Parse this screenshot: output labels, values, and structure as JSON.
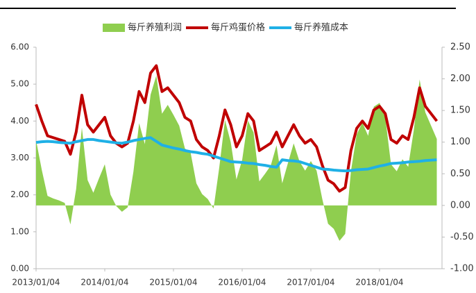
{
  "chart_data": {
    "type": "line",
    "categories": [
      "2013/01/04",
      null,
      null,
      null,
      null,
      null,
      null,
      null,
      null,
      null,
      null,
      null,
      "2014/01/04",
      null,
      null,
      null,
      null,
      null,
      null,
      null,
      null,
      null,
      null,
      null,
      "2015/01/04",
      null,
      null,
      null,
      null,
      null,
      null,
      null,
      null,
      null,
      null,
      null,
      "2016/01/04",
      null,
      null,
      null,
      null,
      null,
      null,
      null,
      null,
      null,
      null,
      null,
      "2017/01/04",
      null,
      null,
      null,
      null,
      null,
      null,
      null,
      null,
      null,
      null,
      null,
      "2018/01/04",
      null,
      null,
      null,
      null,
      null,
      null,
      null,
      null,
      null,
      null
    ],
    "series": [
      {
        "name": "每斤养殖利润",
        "color": "#8fce4f",
        "style": "area",
        "axis": "y2",
        "values": [
          1.03,
          0.56,
          0.15,
          0.11,
          0.08,
          0.04,
          -0.3,
          0.26,
          1.23,
          0.4,
          0.2,
          0.43,
          0.65,
          0.17,
          -0.01,
          -0.1,
          -0.03,
          0.53,
          1.3,
          0.97,
          1.75,
          2.05,
          1.45,
          1.59,
          1.43,
          1.26,
          0.9,
          0.83,
          0.35,
          0.18,
          0.1,
          -0.05,
          0.6,
          1.35,
          1.0,
          0.41,
          0.72,
          1.34,
          1.15,
          0.38,
          0.5,
          0.63,
          0.95,
          0.35,
          0.67,
          0.98,
          0.7,
          0.55,
          0.7,
          0.55,
          0.1,
          -0.29,
          -0.37,
          -0.56,
          -0.45,
          0.54,
          1.12,
          1.31,
          1.1,
          1.56,
          1.62,
          1.39,
          0.65,
          0.54,
          0.73,
          0.61,
          1.2,
          1.99,
          1.47,
          1.26,
          1.05
        ]
      },
      {
        "name": "每斤鸡蛋价格",
        "color": "#c00000",
        "style": "line",
        "values": [
          4.45,
          4.0,
          3.6,
          3.55,
          3.5,
          3.45,
          3.1,
          3.7,
          4.7,
          3.9,
          3.7,
          3.9,
          4.1,
          3.6,
          3.4,
          3.3,
          3.4,
          4.0,
          4.8,
          4.5,
          5.3,
          5.5,
          4.8,
          4.9,
          4.7,
          4.5,
          4.1,
          4.0,
          3.5,
          3.3,
          3.2,
          3.0,
          3.6,
          4.3,
          3.9,
          3.3,
          3.6,
          4.2,
          4.0,
          3.2,
          3.3,
          3.4,
          3.7,
          3.3,
          3.6,
          3.9,
          3.6,
          3.4,
          3.5,
          3.3,
          2.8,
          2.4,
          2.3,
          2.1,
          2.2,
          3.2,
          3.8,
          4.0,
          3.8,
          4.3,
          4.4,
          4.2,
          3.5,
          3.4,
          3.6,
          3.5,
          4.1,
          4.9,
          4.4,
          4.2,
          4.0
        ]
      },
      {
        "name": "每斤养殖成本",
        "color": "#1fb0e6",
        "style": "line",
        "values": [
          3.42,
          3.44,
          3.45,
          3.44,
          3.42,
          3.41,
          3.4,
          3.44,
          3.47,
          3.5,
          3.5,
          3.47,
          3.45,
          3.43,
          3.41,
          3.4,
          3.43,
          3.47,
          3.5,
          3.53,
          3.55,
          3.45,
          3.35,
          3.31,
          3.27,
          3.24,
          3.2,
          3.17,
          3.15,
          3.12,
          3.1,
          3.05,
          3.0,
          2.95,
          2.9,
          2.89,
          2.88,
          2.86,
          2.85,
          2.82,
          2.8,
          2.77,
          2.75,
          2.95,
          2.93,
          2.92,
          2.9,
          2.85,
          2.8,
          2.75,
          2.7,
          2.69,
          2.67,
          2.66,
          2.65,
          2.66,
          2.68,
          2.69,
          2.7,
          2.74,
          2.78,
          2.81,
          2.85,
          2.86,
          2.87,
          2.89,
          2.9,
          2.91,
          2.93,
          2.94,
          2.95
        ]
      }
    ],
    "ylim": [
      0,
      6
    ],
    "yticks": [
      {
        "value": 0,
        "label": "0.00"
      },
      {
        "value": 1,
        "label": "1.00"
      },
      {
        "value": 2,
        "label": "2.00"
      },
      {
        "value": 3,
        "label": "3.00"
      },
      {
        "value": 4,
        "label": "4.00"
      },
      {
        "value": 5,
        "label": "5.00"
      },
      {
        "value": 6,
        "label": "6.00"
      }
    ],
    "y2lim": [
      -1,
      2.5
    ],
    "y2ticks": [
      {
        "value": -1,
        "label": "-1.00"
      },
      {
        "value": -0.5,
        "label": "-0.50"
      },
      {
        "value": 0,
        "label": "0.00"
      },
      {
        "value": 0.5,
        "label": "0.50"
      },
      {
        "value": 1,
        "label": "1.00"
      },
      {
        "value": 1.5,
        "label": "1.50"
      },
      {
        "value": 2,
        "label": "2.00"
      },
      {
        "value": 2.5,
        "label": "2.50"
      }
    ],
    "legend": "top"
  }
}
